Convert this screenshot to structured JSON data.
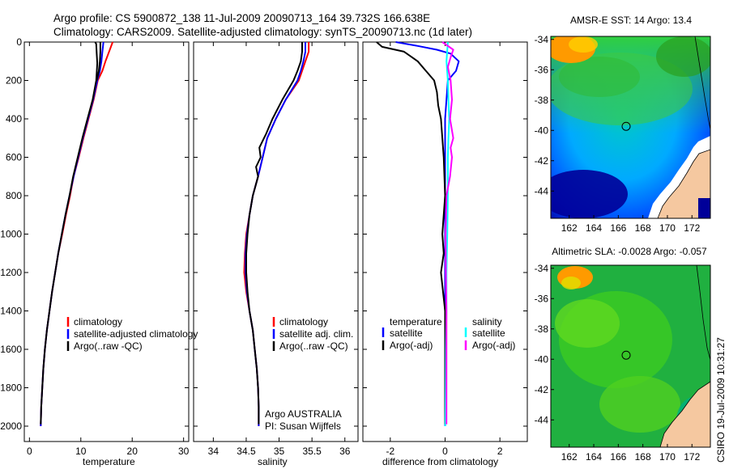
{
  "header": {
    "line1": "Argo profile: CS 5900872_138 11-Jul-2009 20090713_164 39.732S 166.638E",
    "line2": "Climatology: CARS2009. Satellite-adjusted climatology: synTS_20090713.nc (1d later)"
  },
  "footer_text": "CSIRO 19-Jul-2009 10:31:27",
  "colors": {
    "red": "#ff0000",
    "blue": "#0000ff",
    "black": "#000000",
    "cyan": "#00ffff",
    "magenta": "#ff00ff",
    "land": "#f5c8a0"
  },
  "chart_data": [
    {
      "type": "line",
      "title": "",
      "xlabel": "temperature",
      "ylabel": "",
      "xlim": [
        -1,
        31
      ],
      "ylim": [
        2080,
        0
      ],
      "xticks": [
        0,
        10,
        20,
        30
      ],
      "yticks": [
        0,
        200,
        400,
        600,
        800,
        1000,
        1200,
        1400,
        1600,
        1800,
        2000
      ],
      "legend": [
        "climatology",
        "satellite-adjusted climatology",
        "Argo(..raw -QC)"
      ],
      "series": [
        {
          "name": "climatology",
          "color": "red",
          "points": [
            [
              16.2,
              0
            ],
            [
              15.5,
              50
            ],
            [
              14.8,
              100
            ],
            [
              14.2,
              150
            ],
            [
              13.3,
              200
            ],
            [
              12.5,
              300
            ],
            [
              11.5,
              400
            ],
            [
              10.5,
              500
            ],
            [
              9.6,
              600
            ],
            [
              8.6,
              700
            ],
            [
              7.9,
              800
            ],
            [
              7.1,
              900
            ],
            [
              6.4,
              1000
            ],
            [
              5.6,
              1100
            ],
            [
              5.0,
              1200
            ],
            [
              4.4,
              1300
            ],
            [
              3.9,
              1400
            ],
            [
              3.4,
              1500
            ],
            [
              3.0,
              1600
            ],
            [
              2.7,
              1700
            ],
            [
              2.5,
              1800
            ],
            [
              2.3,
              1900
            ],
            [
              2.2,
              2000
            ]
          ]
        },
        {
          "name": "satellite-adjusted climatology",
          "color": "blue",
          "points": [
            [
              14.4,
              0
            ],
            [
              14.2,
              50
            ],
            [
              14.0,
              100
            ],
            [
              13.7,
              150
            ],
            [
              13.2,
              200
            ],
            [
              12.4,
              300
            ],
            [
              11.4,
              400
            ],
            [
              10.4,
              500
            ],
            [
              9.5,
              600
            ],
            [
              8.6,
              700
            ],
            [
              7.8,
              800
            ],
            [
              7.0,
              900
            ],
            [
              6.3,
              1000
            ],
            [
              5.6,
              1100
            ],
            [
              5.0,
              1200
            ],
            [
              4.4,
              1300
            ],
            [
              3.9,
              1400
            ],
            [
              3.4,
              1500
            ],
            [
              3.0,
              1600
            ],
            [
              2.7,
              1700
            ],
            [
              2.5,
              1800
            ],
            [
              2.3,
              1900
            ],
            [
              2.2,
              2000
            ]
          ]
        },
        {
          "name": "Argo(..raw -QC)",
          "color": "black",
          "points": [
            [
              12.8,
              0
            ],
            [
              13.0,
              10
            ],
            [
              13.1,
              60
            ],
            [
              13.2,
              110
            ],
            [
              13.1,
              160
            ],
            [
              13.0,
              200
            ],
            [
              12.3,
              300
            ],
            [
              11.3,
              400
            ],
            [
              10.3,
              500
            ],
            [
              9.4,
              600
            ],
            [
              8.5,
              700
            ],
            [
              7.8,
              800
            ],
            [
              7.0,
              900
            ],
            [
              6.3,
              1000
            ],
            [
              5.6,
              1100
            ],
            [
              5.0,
              1200
            ],
            [
              4.4,
              1300
            ],
            [
              3.9,
              1400
            ],
            [
              3.4,
              1500
            ],
            [
              3.0,
              1600
            ],
            [
              2.7,
              1700
            ],
            [
              2.5,
              1800
            ],
            [
              2.3,
              1900
            ],
            [
              2.2,
              1990
            ]
          ]
        },
        {
          "name": "Argo(..raw -QC)",
          "color": "black",
          "points": [
            [
              13.8,
              0
            ],
            [
              13.8,
              50
            ],
            [
              13.7,
              100
            ],
            [
              13.5,
              150
            ],
            [
              13.1,
              200
            ]
          ]
        }
      ]
    },
    {
      "type": "line",
      "title": "",
      "xlabel": "salinity",
      "ylabel": "",
      "xlim": [
        33.7,
        36.2
      ],
      "ylim": [
        2080,
        0
      ],
      "xticks": [
        34,
        34.5,
        35,
        35.5,
        36
      ],
      "xticklabels": [
        "34",
        "34.5",
        "35",
        "35.5",
        "36"
      ],
      "legend": [
        "climatology",
        "satellite adj. clim.",
        "Argo(..raw -QC)"
      ],
      "annotation": [
        "Argo AUSTRALIA",
        "PI: Susan Wijffels"
      ],
      "series": [
        {
          "name": "climatology",
          "color": "red",
          "points": [
            [
              35.45,
              0
            ],
            [
              35.45,
              50
            ],
            [
              35.4,
              100
            ],
            [
              35.35,
              150
            ],
            [
              35.3,
              200
            ],
            [
              35.1,
              300
            ],
            [
              34.95,
              400
            ],
            [
              34.82,
              500
            ],
            [
              34.75,
              600
            ],
            [
              34.68,
              700
            ],
            [
              34.6,
              800
            ],
            [
              34.55,
              900
            ],
            [
              34.5,
              1000
            ],
            [
              34.48,
              1100
            ],
            [
              34.47,
              1200
            ],
            [
              34.5,
              1300
            ],
            [
              34.55,
              1400
            ],
            [
              34.6,
              1500
            ],
            [
              34.63,
              1600
            ],
            [
              34.66,
              1700
            ],
            [
              34.68,
              1800
            ],
            [
              34.69,
              1900
            ],
            [
              34.69,
              2000
            ]
          ]
        },
        {
          "name": "satellite adj. clim.",
          "color": "blue",
          "points": [
            [
              35.4,
              0
            ],
            [
              35.4,
              50
            ],
            [
              35.37,
              100
            ],
            [
              35.33,
              150
            ],
            [
              35.28,
              200
            ],
            [
              35.1,
              300
            ],
            [
              34.95,
              400
            ],
            [
              34.82,
              500
            ],
            [
              34.75,
              600
            ],
            [
              34.68,
              700
            ],
            [
              34.6,
              800
            ],
            [
              34.55,
              900
            ],
            [
              34.51,
              1000
            ],
            [
              34.49,
              1100
            ],
            [
              34.49,
              1200
            ],
            [
              34.51,
              1300
            ],
            [
              34.55,
              1400
            ],
            [
              34.6,
              1500
            ],
            [
              34.63,
              1600
            ],
            [
              34.66,
              1700
            ],
            [
              34.68,
              1800
            ],
            [
              34.69,
              1900
            ],
            [
              34.69,
              2000
            ]
          ]
        },
        {
          "name": "Argo(..raw -QC)",
          "color": "black",
          "points": [
            [
              35.35,
              0
            ],
            [
              35.35,
              50
            ],
            [
              35.33,
              100
            ],
            [
              35.28,
              150
            ],
            [
              35.22,
              200
            ],
            [
              35.05,
              300
            ],
            [
              34.9,
              400
            ],
            [
              34.8,
              480
            ],
            [
              34.7,
              550
            ],
            [
              34.72,
              600
            ],
            [
              34.65,
              650
            ],
            [
              34.68,
              700
            ],
            [
              34.6,
              800
            ],
            [
              34.55,
              900
            ],
            [
              34.52,
              1000
            ],
            [
              34.5,
              1100
            ],
            [
              34.5,
              1200
            ],
            [
              34.52,
              1300
            ],
            [
              34.55,
              1400
            ],
            [
              34.6,
              1500
            ],
            [
              34.63,
              1600
            ],
            [
              34.66,
              1700
            ],
            [
              34.68,
              1800
            ],
            [
              34.69,
              1900
            ],
            [
              34.69,
              1990
            ]
          ]
        }
      ]
    },
    {
      "type": "line",
      "title": "",
      "xlabel": "difference from climatology",
      "ylabel": "",
      "xlim": [
        -3.0,
        3.0
      ],
      "ylim": [
        2080,
        0
      ],
      "xticks": [
        -2,
        0,
        2
      ],
      "legend_left_title": "temperature",
      "legend_left": [
        "satellite",
        "Argo(-adj)"
      ],
      "legend_right_title": "salinity",
      "legend_right": [
        "satellite",
        "Argo(-adj)"
      ],
      "series": [
        {
          "name": "temperature satellite",
          "color": "blue",
          "points": [
            [
              -1.8,
              0
            ],
            [
              -1.0,
              20
            ],
            [
              -0.3,
              40
            ],
            [
              0.2,
              60
            ],
            [
              0.5,
              100
            ],
            [
              0.4,
              150
            ],
            [
              0.1,
              200
            ],
            [
              0.05,
              300
            ],
            [
              0,
              400
            ],
            [
              0,
              600
            ],
            [
              0,
              1000
            ],
            [
              0,
              1500
            ],
            [
              0,
              2000
            ]
          ]
        },
        {
          "name": "temperature Argo(-adj)",
          "color": "black",
          "points": [
            [
              -2.5,
              0
            ],
            [
              -2.3,
              25
            ],
            [
              -1.5,
              50
            ],
            [
              -1.0,
              100
            ],
            [
              -0.7,
              150
            ],
            [
              -0.4,
              200
            ],
            [
              -0.3,
              260
            ],
            [
              -0.25,
              330
            ],
            [
              -0.15,
              400
            ],
            [
              -0.1,
              500
            ],
            [
              -0.05,
              600
            ],
            [
              0,
              800
            ],
            [
              -0.1,
              1000
            ],
            [
              -0.05,
              1100
            ],
            [
              -0.15,
              1200
            ],
            [
              0,
              1400
            ],
            [
              0,
              1600
            ],
            [
              0,
              1990
            ]
          ]
        },
        {
          "name": "salinity satellite",
          "color": "cyan",
          "points": [
            [
              0.1,
              0
            ],
            [
              0.05,
              100
            ],
            [
              0.1,
              200
            ],
            [
              0.12,
              300
            ],
            [
              0.15,
              400
            ],
            [
              0.12,
              500
            ],
            [
              0.1,
              600
            ],
            [
              0.1,
              800
            ],
            [
              0.08,
              1000
            ],
            [
              0.05,
              1200
            ],
            [
              0.05,
              1400
            ],
            [
              0.03,
              1600
            ],
            [
              0.02,
              1800
            ],
            [
              0.01,
              2000
            ]
          ]
        },
        {
          "name": "salinity Argo(-adj)",
          "color": "magenta",
          "points": [
            [
              -0.1,
              0
            ],
            [
              0.3,
              40
            ],
            [
              0.2,
              80
            ],
            [
              0.1,
              130
            ],
            [
              0.2,
              200
            ],
            [
              0.25,
              300
            ],
            [
              0.18,
              400
            ],
            [
              0.3,
              500
            ],
            [
              0.2,
              550
            ],
            [
              0.25,
              600
            ],
            [
              0.18,
              700
            ],
            [
              0.05,
              800
            ],
            [
              0.02,
              1000
            ],
            [
              0.03,
              1200
            ],
            [
              0.05,
              1400
            ],
            [
              0.05,
              1600
            ],
            [
              0.05,
              1800
            ],
            [
              0.05,
              1990
            ]
          ]
        }
      ]
    },
    {
      "type": "heatmap",
      "title": "AMSR-E SST: 14 Argo: 13.4",
      "xlim": [
        160.5,
        173.5
      ],
      "ylim": [
        -45.8,
        -33.8
      ],
      "xticks": [
        162,
        164,
        166,
        168,
        170,
        172
      ],
      "yticks": [
        -34,
        -36,
        -38,
        -40,
        -42,
        -44
      ],
      "marker": [
        166.638,
        -39.732
      ]
    },
    {
      "type": "heatmap",
      "title": "Altimetric SLA: -0.0028 Argo: -0.057",
      "xlim": [
        160.5,
        173.5
      ],
      "ylim": [
        -45.8,
        -33.8
      ],
      "xticks": [
        162,
        164,
        166,
        168,
        170,
        172
      ],
      "yticks": [
        -34,
        -36,
        -38,
        -40,
        -42,
        -44
      ],
      "marker": [
        166.638,
        -39.732
      ]
    }
  ]
}
